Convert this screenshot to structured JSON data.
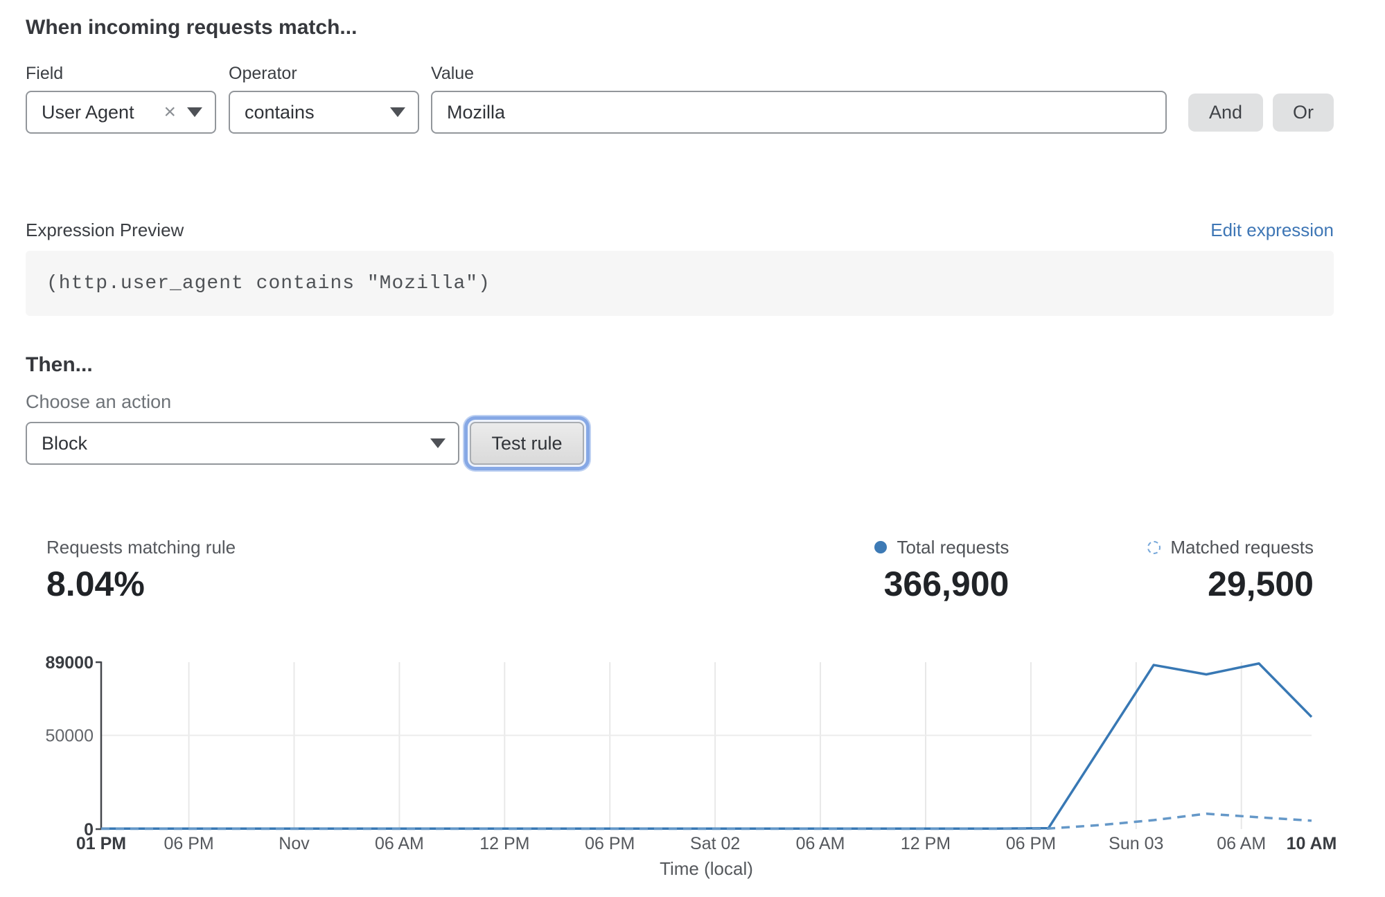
{
  "rule_builder": {
    "title": "When incoming requests match...",
    "fields": {
      "field_label": "Field",
      "field_value": "User Agent",
      "clear_icon": "×",
      "operator_label": "Operator",
      "operator_value": "contains",
      "value_label": "Value",
      "value_text": "Mozilla",
      "and_button": "And",
      "or_button": "Or"
    },
    "expression": {
      "label": "Expression Preview",
      "edit_link": "Edit expression",
      "code": "(http.user_agent contains \"Mozilla\")"
    },
    "then": {
      "title": "Then...",
      "choose_label": "Choose an action",
      "action_value": "Block",
      "test_button": "Test rule"
    }
  },
  "stats": {
    "matching_label": "Requests matching rule",
    "matching_value": "8.04%",
    "legend": [
      {
        "label": "Total requests",
        "value": "366,900",
        "marker": "solid-dot",
        "color": "#3d7ab5"
      },
      {
        "label": "Matched requests",
        "value": "29,500",
        "marker": "dashed-circle",
        "color": "#76a7da"
      }
    ]
  },
  "colors": {
    "link_blue": "#3e76b5",
    "line_solid": "#3878b4",
    "line_dashed": "#6598c8",
    "focus_ring": "#86a8e5",
    "grid": "#e8e8e8"
  },
  "chart_data": {
    "type": "line",
    "title": "",
    "xlabel": "Time (local)",
    "ylabel": "",
    "x_total_hours": 69,
    "ylim": [
      0,
      89000
    ],
    "legend_position": "top-right",
    "grid": true,
    "yticks": [
      {
        "v": 89000,
        "label": "89000",
        "bold": true
      },
      {
        "v": 50000,
        "label": "50000",
        "grid": true
      },
      {
        "v": 0,
        "label": "0",
        "bold": true
      }
    ],
    "xticks": [
      {
        "h": 0,
        "label": "01 PM",
        "bold": true
      },
      {
        "h": 5,
        "label": "06 PM"
      },
      {
        "h": 11,
        "label": "Nov"
      },
      {
        "h": 17,
        "label": "06 AM"
      },
      {
        "h": 23,
        "label": "12 PM"
      },
      {
        "h": 29,
        "label": "06 PM"
      },
      {
        "h": 35,
        "label": "Sat 02"
      },
      {
        "h": 41,
        "label": "06 AM"
      },
      {
        "h": 47,
        "label": "12 PM"
      },
      {
        "h": 53,
        "label": "06 PM"
      },
      {
        "h": 59,
        "label": "Sun 03"
      },
      {
        "h": 65,
        "label": "06 AM"
      },
      {
        "h": 69,
        "label": "10 AM",
        "bold": true
      }
    ],
    "series": [
      {
        "name": "Total requests",
        "style": "solid",
        "color": "#3878b4",
        "points": [
          [
            0,
            300
          ],
          [
            3,
            300
          ],
          [
            6,
            300
          ],
          [
            9,
            300
          ],
          [
            12,
            300
          ],
          [
            15,
            300
          ],
          [
            18,
            300
          ],
          [
            21,
            300
          ],
          [
            24,
            300
          ],
          [
            27,
            300
          ],
          [
            30,
            300
          ],
          [
            33,
            300
          ],
          [
            36,
            300
          ],
          [
            39,
            300
          ],
          [
            42,
            300
          ],
          [
            45,
            300
          ],
          [
            48,
            300
          ],
          [
            51,
            300
          ],
          [
            54,
            500
          ],
          [
            57,
            44000
          ],
          [
            60,
            87500
          ],
          [
            63,
            82500
          ],
          [
            66,
            88300
          ],
          [
            69,
            59800
          ]
        ]
      },
      {
        "name": "Matched requests",
        "style": "dashed",
        "color": "#6598c8",
        "points": [
          [
            0,
            200
          ],
          [
            3,
            200
          ],
          [
            6,
            200
          ],
          [
            9,
            200
          ],
          [
            12,
            200
          ],
          [
            15,
            200
          ],
          [
            18,
            200
          ],
          [
            21,
            200
          ],
          [
            24,
            200
          ],
          [
            27,
            200
          ],
          [
            30,
            200
          ],
          [
            33,
            200
          ],
          [
            36,
            200
          ],
          [
            39,
            200
          ],
          [
            42,
            200
          ],
          [
            45,
            200
          ],
          [
            48,
            200
          ],
          [
            51,
            200
          ],
          [
            54,
            300
          ],
          [
            57,
            2200
          ],
          [
            60,
            4800
          ],
          [
            63,
            8200
          ],
          [
            66,
            6300
          ],
          [
            69,
            4500
          ]
        ]
      }
    ]
  }
}
